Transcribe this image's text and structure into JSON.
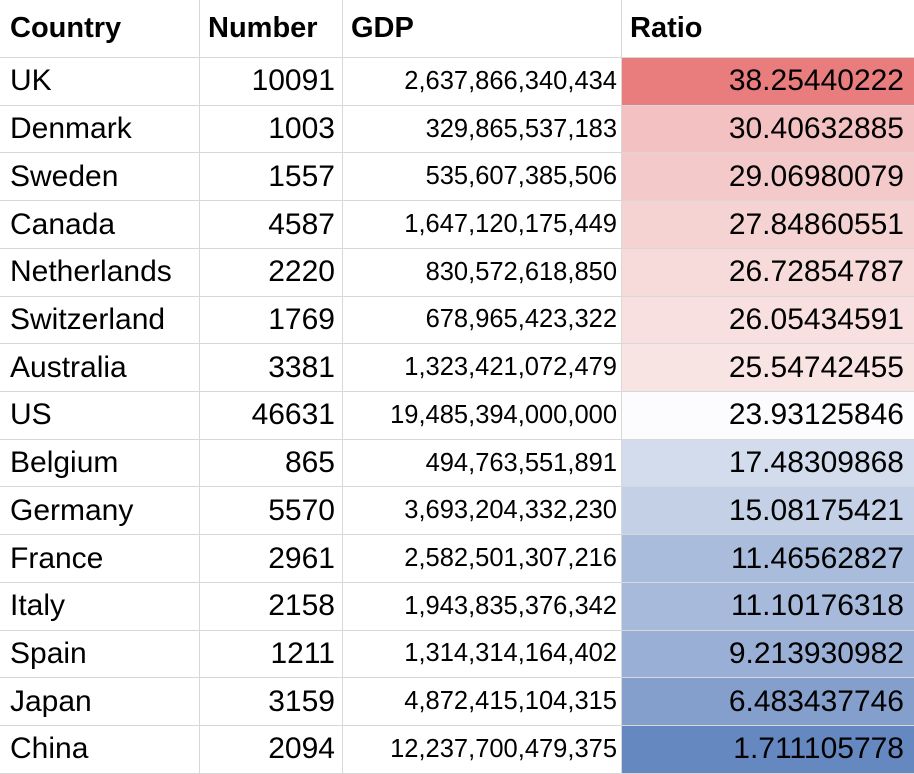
{
  "table": {
    "headers": [
      "Country",
      "Number",
      "GDP",
      "Ratio"
    ],
    "rows": [
      {
        "country": "UK",
        "number": "10091",
        "gdp": "2,637,866,340,434",
        "ratio": "38.25440222",
        "color": "#e97c7c"
      },
      {
        "country": "Denmark",
        "number": "1003",
        "gdp": "329,865,537,183",
        "ratio": "30.40632885",
        "color": "#f3c1c1"
      },
      {
        "country": "Sweden",
        "number": "1557",
        "gdp": "535,607,385,506",
        "ratio": "29.06980079",
        "color": "#f4c9c9"
      },
      {
        "country": "Canada",
        "number": "4587",
        "gdp": "1,647,120,175,449",
        "ratio": "27.84860551",
        "color": "#f6d3d3"
      },
      {
        "country": "Netherlands",
        "number": "2220",
        "gdp": "830,572,618,850",
        "ratio": "26.72854787",
        "color": "#f7dada"
      },
      {
        "country": "Switzerland",
        "number": "1769",
        "gdp": "678,965,423,322",
        "ratio": "26.05434591",
        "color": "#f8e0e0"
      },
      {
        "country": "Australia",
        "number": "3381",
        "gdp": "1,323,421,072,479",
        "ratio": "25.54742455",
        "color": "#f9e4e4"
      },
      {
        "country": "US",
        "number": "46631",
        "gdp": "19,485,394,000,000",
        "ratio": "23.93125846",
        "color": "#fcfcfe"
      },
      {
        "country": "Belgium",
        "number": "865",
        "gdp": "494,763,551,891",
        "ratio": "17.48309868",
        "color": "#d3dcec"
      },
      {
        "country": "Germany",
        "number": "5570",
        "gdp": "3,693,204,332,230",
        "ratio": "15.08175421",
        "color": "#c3d0e6"
      },
      {
        "country": "France",
        "number": "2961",
        "gdp": "2,582,501,307,216",
        "ratio": "11.46562827",
        "color": "#a9bcdb"
      },
      {
        "country": "Italy",
        "number": "2158",
        "gdp": "1,943,835,376,342",
        "ratio": "11.10176318",
        "color": "#a7badb"
      },
      {
        "country": "Spain",
        "number": "1211",
        "gdp": "1,314,314,164,402",
        "ratio": "9.213930982",
        "color": "#9aafd5"
      },
      {
        "country": "Japan",
        "number": "3159",
        "gdp": "4,872,415,104,315",
        "ratio": "6.483437746",
        "color": "#859fcd"
      },
      {
        "country": "China",
        "number": "2094",
        "gdp": "12,237,700,479,375",
        "ratio": "1.711105778",
        "color": "#6688c1"
      }
    ]
  }
}
